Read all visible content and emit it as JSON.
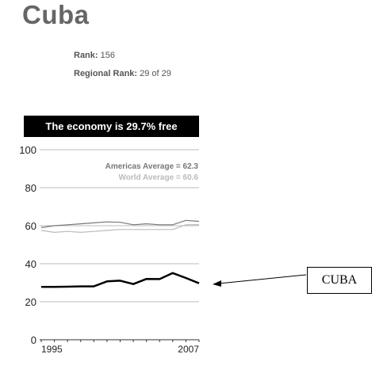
{
  "header": {
    "title": "Cuba",
    "rank_label": "Rank:",
    "rank_value": "156",
    "regional_rank_label": "Regional Rank:",
    "regional_rank_value": "29 of 29"
  },
  "banner": {
    "text": "The economy is 29.7% free"
  },
  "callout": {
    "text": "CUBA"
  },
  "colors": {
    "cuba": "#000000",
    "americas": "#777777",
    "world": "#bbbbbb",
    "grid": "#bbbbbb"
  },
  "chart_data": {
    "type": "line",
    "x": [
      1995,
      1996,
      1997,
      1998,
      1999,
      2000,
      2001,
      2002,
      2003,
      2004,
      2005,
      2006,
      2007
    ],
    "series": [
      {
        "name": "Americas Average",
        "label": "Americas Average = 62.3",
        "values": [
          59,
          60,
          60.5,
          61,
          61.5,
          62,
          61.8,
          60.5,
          61,
          60.5,
          60.5,
          62.8,
          62.3
        ]
      },
      {
        "name": "World Average",
        "label": "World Average = 60.6",
        "values": [
          57.5,
          56.5,
          57,
          56.5,
          57,
          57.5,
          58,
          58,
          58,
          58,
          58,
          60.5,
          60.6
        ]
      },
      {
        "name": "CUBA",
        "values": [
          27.8,
          27.8,
          27.9,
          28.1,
          28.1,
          30.7,
          31.1,
          29.3,
          32.0,
          31.9,
          35.1,
          32.5,
          29.7
        ]
      }
    ],
    "ylim": [
      0,
      100
    ],
    "yticks": [
      "0",
      "20",
      "40",
      "60",
      "80",
      "100"
    ],
    "xtick_labels": [
      "1995",
      "2007"
    ],
    "grid": true
  }
}
